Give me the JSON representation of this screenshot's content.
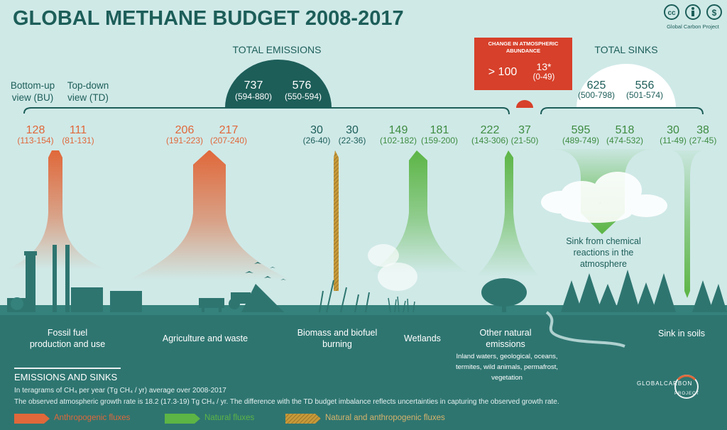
{
  "title": "GLOBAL METHANE BUDGET 2008-2017",
  "license": {
    "org": "Global Carbon Project"
  },
  "views": {
    "bu": "Bottom-up view (BU)",
    "td": "Top-down view (TD)"
  },
  "total_emissions": {
    "label": "TOTAL EMISSIONS",
    "bu": "737",
    "bu_range": "(594-880)",
    "td": "576",
    "td_range": "(550-594)"
  },
  "change": {
    "label": "CHANGE IN ATMOSPHERIC ABUNDANCE",
    "bu": "> 100",
    "td": "13*",
    "td_range": "(0-49)"
  },
  "total_sinks": {
    "label": "TOTAL SINKS",
    "bu": "625",
    "bu_range": "(500-798)",
    "td": "556",
    "td_range": "(501-574)"
  },
  "fluxes": [
    {
      "key": "fossil",
      "label": "Fossil fuel production and use",
      "bu": "128",
      "bu_range": "(113-154)",
      "td": "111",
      "td_range": "(81-131)",
      "kind": "anthropogenic"
    },
    {
      "key": "agri",
      "label": "Agriculture and waste",
      "bu": "206",
      "bu_range": "(191-223)",
      "td": "217",
      "td_range": "(207-240)",
      "kind": "anthropogenic"
    },
    {
      "key": "biomass",
      "label": "Biomass and biofuel burning",
      "bu": "30",
      "bu_range": "(26-40)",
      "td": "30",
      "td_range": "(22-36)",
      "kind": "mixed"
    },
    {
      "key": "wetlands",
      "label": "Wetlands",
      "bu": "149",
      "bu_range": "(102-182)",
      "td": "181",
      "td_range": "(159-200)",
      "kind": "natural"
    },
    {
      "key": "other",
      "label": "Other natural emissions",
      "sublabel": "Inland waters, geological, oceans, termites, wild animals, permafrost, vegetation",
      "bu": "222",
      "bu_range": "(143-306)",
      "td": "37",
      "td_range": "(21-50)",
      "kind": "natural"
    },
    {
      "key": "chem",
      "label": "Sink from chemical reactions in the atmosphere",
      "bu": "595",
      "bu_range": "(489-749)",
      "td": "518",
      "td_range": "(474-532)",
      "kind": "sink"
    },
    {
      "key": "soils",
      "label": "Sink in soils",
      "bu": "30",
      "bu_range": "(11-49)",
      "td": "38",
      "td_range": "(27-45)",
      "kind": "sink"
    }
  ],
  "footer": {
    "heading": "EMISSIONS AND SINKS",
    "line1": "In teragrams of CH₄ per year (Tg CH₄ / yr) average over 2008-2017",
    "line2": "The observed atmospheric growth rate is 18.2 (17.3-19) Tg CH₄ / yr. The difference with the TD budget imbalance reflects uncertainties in capturing the observed growth rate.",
    "legend": [
      {
        "label": "Anthropogenic fluxes",
        "color": "#e0683a"
      },
      {
        "label": "Natural fluxes",
        "color": "#5cb545"
      },
      {
        "label": "Natural and anthropogenic  fluxes",
        "color": "#b8923a"
      }
    ],
    "logo_lines": [
      "GLOBAL",
      "CARBON",
      "PROJECT"
    ]
  },
  "colors": {
    "bg": "#cfe9e7",
    "ground": "#2e7570",
    "dark": "#1d5e59",
    "orange": "#e0683a",
    "green": "#5cb545",
    "mixed": "#b8923a",
    "red": "#d7402a"
  }
}
